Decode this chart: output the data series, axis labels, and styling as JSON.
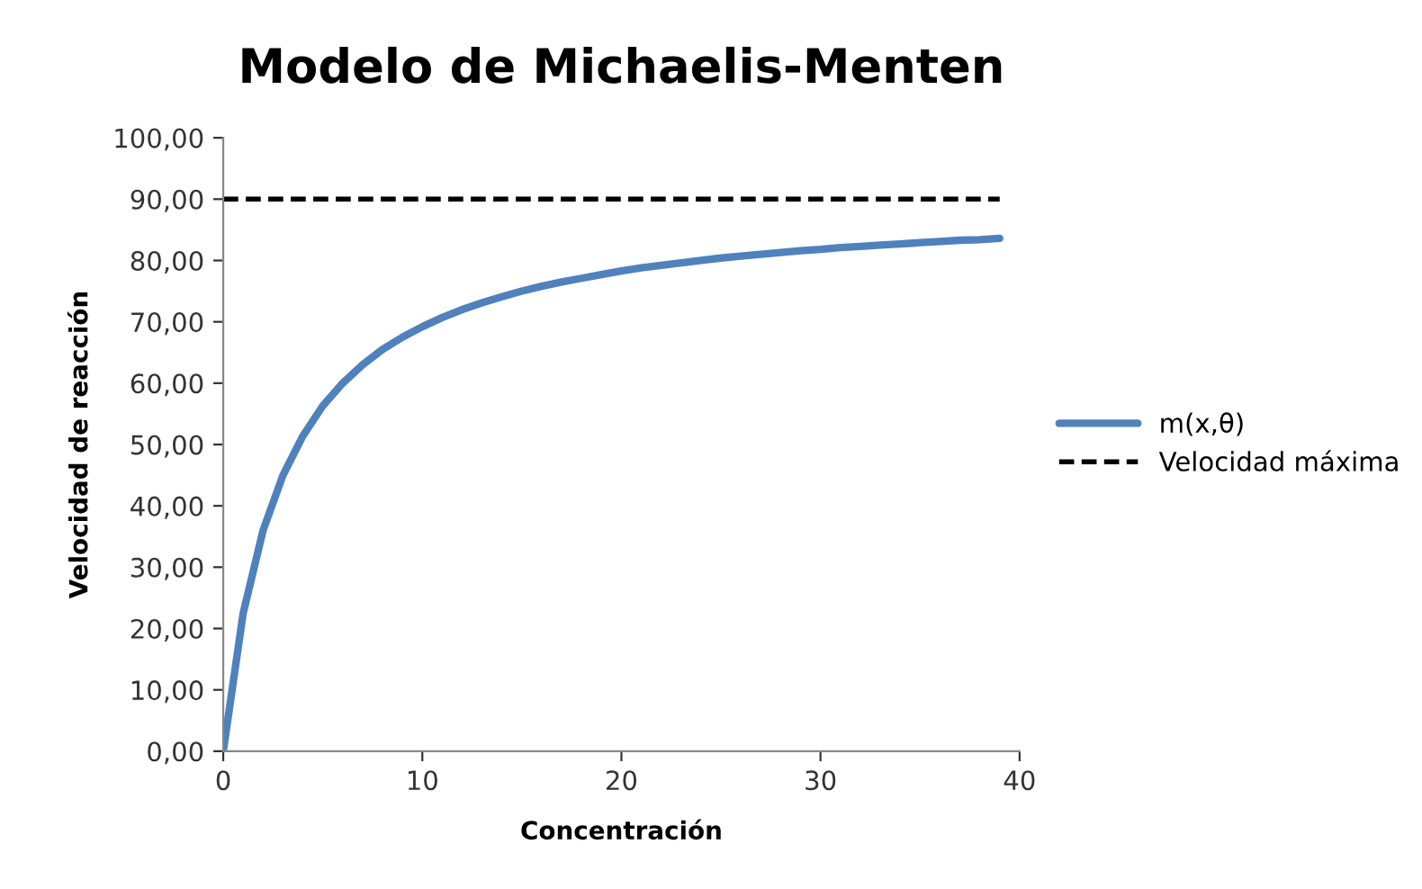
{
  "chart_data": {
    "type": "line",
    "title": "Modelo de Michaelis-Menten",
    "xlabel": "Concentración",
    "ylabel": "Velocidad de reacción",
    "xlim": [
      0,
      40
    ],
    "xticks": [
      0,
      10,
      20,
      30,
      40
    ],
    "ylim": [
      0,
      100
    ],
    "yticks": [
      {
        "value": 0,
        "label": "0,00"
      },
      {
        "value": 10,
        "label": "10,00"
      },
      {
        "value": 20,
        "label": "20,00"
      },
      {
        "value": 30,
        "label": "30,00"
      },
      {
        "value": 40,
        "label": "40,00"
      },
      {
        "value": 50,
        "label": "50,00"
      },
      {
        "value": 60,
        "label": "60,00"
      },
      {
        "value": 70,
        "label": "70,00"
      },
      {
        "value": 80,
        "label": "80,00"
      },
      {
        "value": 90,
        "label": "90,00"
      },
      {
        "value": 100,
        "label": "100,00"
      }
    ],
    "grid": false,
    "legend": "right",
    "marker": "none",
    "series": [
      {
        "name": "m(x,θ)",
        "color": "#4f81bd",
        "line_style": "solid",
        "x": [
          0,
          1,
          2,
          3,
          4,
          5,
          6,
          7,
          8,
          9,
          10,
          11,
          12,
          13,
          14,
          15,
          16,
          17,
          18,
          19,
          20,
          21,
          22,
          23,
          24,
          25,
          26,
          27,
          28,
          29,
          30,
          31,
          32,
          33,
          34,
          35,
          36,
          37,
          38,
          39
        ],
        "values": [
          0,
          22.5,
          36,
          45,
          51.4,
          56.3,
          60,
          63,
          65.5,
          67.5,
          69.2,
          70.7,
          72,
          73.1,
          74.1,
          75,
          75.8,
          76.5,
          77.1,
          77.7,
          78.3,
          78.8,
          79.2,
          79.6,
          80,
          80.4,
          80.7,
          81,
          81.3,
          81.6,
          81.8,
          82.1,
          82.3,
          82.5,
          82.7,
          82.9,
          83.1,
          83.3,
          83.4,
          83.6
        ]
      },
      {
        "name": "Velocidad máxima",
        "color": "#000000",
        "line_style": "dashed",
        "x": [
          0,
          39
        ],
        "values": [
          90,
          90
        ]
      }
    ]
  }
}
